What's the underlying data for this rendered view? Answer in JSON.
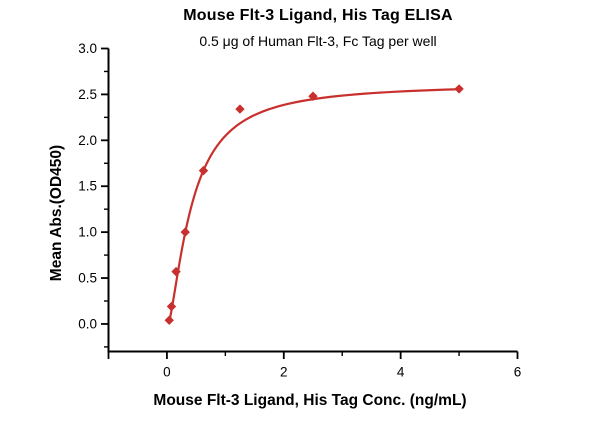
{
  "chart_data": {
    "type": "scatter",
    "title": "Mouse Flt-3 Ligand, His Tag ELISA",
    "subtitle": "0.5 μg of Human Flt-3, Fc Tag per well",
    "xlabel": "Mouse Flt-3 Ligand, His Tag Conc. (ng/mL)",
    "ylabel": "Mean Abs.(OD450)",
    "x": [
      0.039,
      0.078,
      0.156,
      0.313,
      0.625,
      1.25,
      2.5,
      5
    ],
    "y": [
      0.04,
      0.19,
      0.57,
      1.0,
      1.67,
      2.34,
      2.48,
      2.56
    ],
    "marker": "diamond",
    "xlim": [
      -1,
      6
    ],
    "ylim": [
      -0.3,
      3.0
    ],
    "xticks": {
      "values": [
        0,
        2,
        4,
        6
      ],
      "labels": [
        "0",
        "2",
        "4",
        "6"
      ],
      "minor": [
        1,
        3,
        5
      ],
      "edge": [
        -1
      ]
    },
    "yticks": {
      "values": [
        0,
        0.5,
        1,
        1.5,
        2,
        2.5,
        3
      ],
      "labels": [
        "0.0",
        "0.5",
        "1.0",
        "1.5",
        "2.0",
        "2.5",
        "3.0"
      ],
      "minor": [
        -0.25,
        0.25,
        0.75,
        1.25,
        1.75,
        2.25,
        2.75
      ]
    },
    "fit_curve": {
      "model": "4PL",
      "bottom": -0.05,
      "top": 2.62,
      "ec50": 0.42,
      "hill": 1.5,
      "x_range": [
        0.039,
        5
      ]
    },
    "grid": false,
    "legend": false,
    "colors": {
      "series": "#c8302e",
      "axis": "#000000",
      "text": "#000000",
      "background": "#ffffff"
    }
  }
}
